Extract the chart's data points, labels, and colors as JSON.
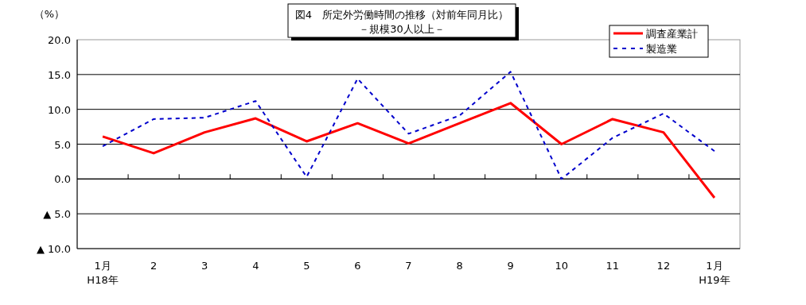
{
  "chart_data": {
    "type": "line",
    "title": "図4　所定外労働時間の推移（対前年同月比）",
    "subtitle": "－規模30人以上－",
    "ylabel": "（%）",
    "categories": [
      "1月\nH18年",
      "2",
      "3",
      "4",
      "5",
      "6",
      "7",
      "8",
      "9",
      "10",
      "11",
      "12",
      "1月\nH19年"
    ],
    "series": [
      {
        "name": "調査産業計",
        "color": "#ff0000",
        "line_style": "solid",
        "values": [
          6.1,
          3.7,
          6.7,
          8.7,
          5.4,
          8.0,
          5.1,
          8.0,
          10.9,
          5.0,
          8.6,
          6.7,
          -2.7
        ]
      },
      {
        "name": "製造業",
        "color": "#0000cc",
        "line_style": "dashed",
        "values": [
          4.7,
          8.6,
          8.8,
          11.2,
          0.3,
          14.4,
          6.5,
          9.1,
          15.4,
          0.0,
          5.9,
          9.4,
          4.0
        ]
      }
    ],
    "ylim": [
      -10,
      20
    ],
    "yticks": [
      {
        "value": -10,
        "label": "▲ 10.0"
      },
      {
        "value": -5,
        "label": "▲ 5.0"
      },
      {
        "value": 0,
        "label": "0.0"
      },
      {
        "value": 5,
        "label": "5.0"
      },
      {
        "value": 10,
        "label": "10.0"
      },
      {
        "value": 15,
        "label": "15.0"
      },
      {
        "value": 20,
        "label": "20.0"
      }
    ],
    "grid": "y",
    "legend": "top right",
    "marker": "none"
  }
}
